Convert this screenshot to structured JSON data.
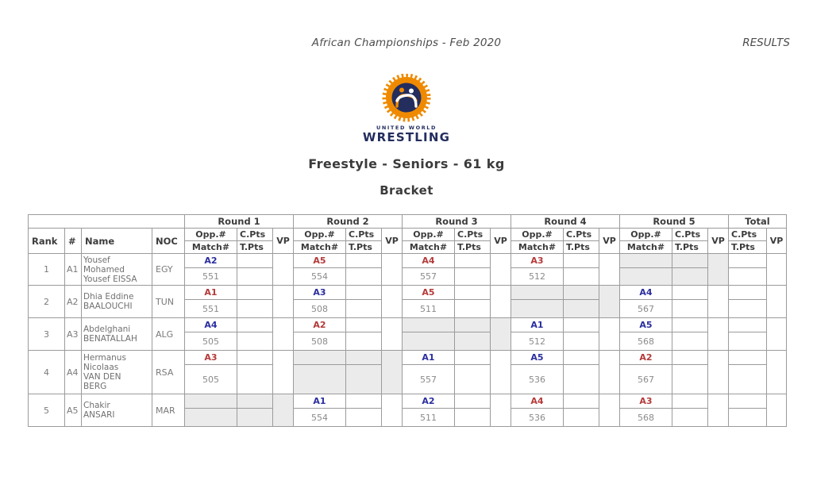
{
  "page": {
    "header_left": "African Championships - Feb 2020",
    "header_right": "RESULTS",
    "title": "Freestyle - Seniors - 61 kg",
    "subtitle": "Bracket"
  },
  "logo": {
    "line1": "UNITED WORLD",
    "line2": "WRESTLING",
    "orange": "#ef8a00",
    "navy": "#232d5e"
  },
  "table": {
    "rounds": [
      "Round 1",
      "Round 2",
      "Round 3",
      "Round 4",
      "Round 5"
    ],
    "total_label": "Total",
    "col_headers": {
      "rank": "Rank",
      "num": "#",
      "name": "Name",
      "noc": "NOC",
      "opp": "Opp.#",
      "match": "Match#",
      "cpts": "C.Pts",
      "tpts": "T.Pts",
      "vp": "VP"
    },
    "colors": {
      "blue": "#2b2f9e",
      "red": "#b43a3a",
      "bye_bg": "#ebebeb"
    },
    "rows": [
      {
        "rank": "1",
        "num": "A1",
        "name": "Yousef\nMohamed\nYousef EISSA",
        "noc": "EGY",
        "rounds": [
          {
            "bye": false,
            "opp": "A2",
            "corner": "blue",
            "match": "551",
            "cpts": "",
            "tpts": "",
            "vp": ""
          },
          {
            "bye": false,
            "opp": "A5",
            "corner": "red",
            "match": "554",
            "cpts": "",
            "tpts": "",
            "vp": ""
          },
          {
            "bye": false,
            "opp": "A4",
            "corner": "red",
            "match": "557",
            "cpts": "",
            "tpts": "",
            "vp": ""
          },
          {
            "bye": false,
            "opp": "A3",
            "corner": "red",
            "match": "512",
            "cpts": "",
            "tpts": "",
            "vp": ""
          },
          {
            "bye": true,
            "opp": "",
            "corner": "",
            "match": "",
            "cpts": "",
            "tpts": "",
            "vp": ""
          }
        ],
        "total": {
          "cpts": "",
          "tpts": "",
          "vp": ""
        }
      },
      {
        "rank": "2",
        "num": "A2",
        "name": "Dhia Eddine\nBAALOUCHI",
        "noc": "TUN",
        "rounds": [
          {
            "bye": false,
            "opp": "A1",
            "corner": "red",
            "match": "551",
            "cpts": "",
            "tpts": "",
            "vp": ""
          },
          {
            "bye": false,
            "opp": "A3",
            "corner": "blue",
            "match": "508",
            "cpts": "",
            "tpts": "",
            "vp": ""
          },
          {
            "bye": false,
            "opp": "A5",
            "corner": "red",
            "match": "511",
            "cpts": "",
            "tpts": "",
            "vp": ""
          },
          {
            "bye": true,
            "opp": "",
            "corner": "",
            "match": "",
            "cpts": "",
            "tpts": "",
            "vp": ""
          },
          {
            "bye": false,
            "opp": "A4",
            "corner": "blue",
            "match": "567",
            "cpts": "",
            "tpts": "",
            "vp": ""
          }
        ],
        "total": {
          "cpts": "",
          "tpts": "",
          "vp": ""
        }
      },
      {
        "rank": "3",
        "num": "A3",
        "name": "Abdelghani\nBENATALLAH",
        "noc": "ALG",
        "rounds": [
          {
            "bye": false,
            "opp": "A4",
            "corner": "blue",
            "match": "505",
            "cpts": "",
            "tpts": "",
            "vp": ""
          },
          {
            "bye": false,
            "opp": "A2",
            "corner": "red",
            "match": "508",
            "cpts": "",
            "tpts": "",
            "vp": ""
          },
          {
            "bye": true,
            "opp": "",
            "corner": "",
            "match": "",
            "cpts": "",
            "tpts": "",
            "vp": ""
          },
          {
            "bye": false,
            "opp": "A1",
            "corner": "blue",
            "match": "512",
            "cpts": "",
            "tpts": "",
            "vp": ""
          },
          {
            "bye": false,
            "opp": "A5",
            "corner": "blue",
            "match": "568",
            "cpts": "",
            "tpts": "",
            "vp": ""
          }
        ],
        "total": {
          "cpts": "",
          "tpts": "",
          "vp": ""
        }
      },
      {
        "rank": "4",
        "num": "A4",
        "name": "Hermanus\nNicolaas\nVAN DEN\nBERG",
        "noc": "RSA",
        "rounds": [
          {
            "bye": false,
            "opp": "A3",
            "corner": "red",
            "match": "505",
            "cpts": "",
            "tpts": "",
            "vp": ""
          },
          {
            "bye": true,
            "opp": "",
            "corner": "",
            "match": "",
            "cpts": "",
            "tpts": "",
            "vp": ""
          },
          {
            "bye": false,
            "opp": "A1",
            "corner": "blue",
            "match": "557",
            "cpts": "",
            "tpts": "",
            "vp": ""
          },
          {
            "bye": false,
            "opp": "A5",
            "corner": "blue",
            "match": "536",
            "cpts": "",
            "tpts": "",
            "vp": ""
          },
          {
            "bye": false,
            "opp": "A2",
            "corner": "red",
            "match": "567",
            "cpts": "",
            "tpts": "",
            "vp": ""
          }
        ],
        "total": {
          "cpts": "",
          "tpts": "",
          "vp": ""
        }
      },
      {
        "rank": "5",
        "num": "A5",
        "name": "Chakir\nANSARI",
        "noc": "MAR",
        "rounds": [
          {
            "bye": true,
            "opp": "",
            "corner": "",
            "match": "",
            "cpts": "",
            "tpts": "",
            "vp": ""
          },
          {
            "bye": false,
            "opp": "A1",
            "corner": "blue",
            "match": "554",
            "cpts": "",
            "tpts": "",
            "vp": ""
          },
          {
            "bye": false,
            "opp": "A2",
            "corner": "blue",
            "match": "511",
            "cpts": "",
            "tpts": "",
            "vp": ""
          },
          {
            "bye": false,
            "opp": "A4",
            "corner": "red",
            "match": "536",
            "cpts": "",
            "tpts": "",
            "vp": ""
          },
          {
            "bye": false,
            "opp": "A3",
            "corner": "red",
            "match": "568",
            "cpts": "",
            "tpts": "",
            "vp": ""
          }
        ],
        "total": {
          "cpts": "",
          "tpts": "",
          "vp": ""
        }
      }
    ]
  }
}
